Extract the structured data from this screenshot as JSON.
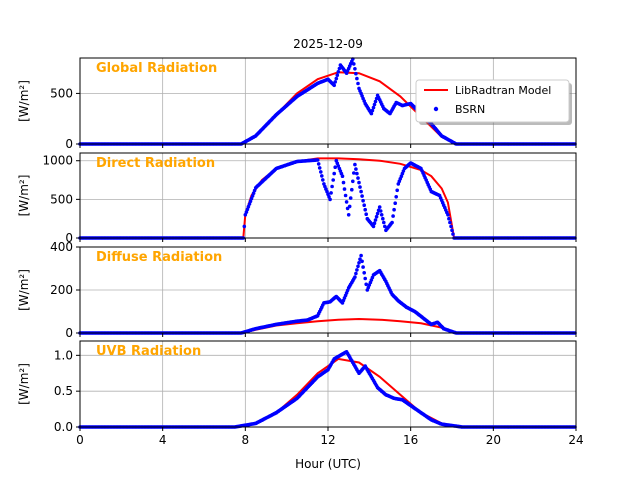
{
  "figure": {
    "title": "2025-12-09",
    "xlabel": "Hour (UTC)",
    "xticks": [
      0,
      4,
      8,
      12,
      16,
      20,
      24
    ],
    "xlim": [
      0,
      24
    ]
  },
  "legend": {
    "model_label": "LibRadtran Model",
    "bsrn_label": "BSRN",
    "placement": "right, inside top panel"
  },
  "colors": {
    "model": "#ff0000",
    "bsrn": "#0000ff",
    "panel_title": "#ffa500",
    "grid": "#b0b0b0"
  },
  "chart_data": [
    {
      "type": "line",
      "title": "Global Radiation",
      "ylabel": "[W/m²]",
      "ylim": [
        0,
        850
      ],
      "yticks": [
        0,
        500
      ],
      "grid": true,
      "series": [
        {
          "name": "LibRadtran Model",
          "x": [
            0,
            7.8,
            8.5,
            9.5,
            10.5,
            11.5,
            12.5,
            13.5,
            14.5,
            15.5,
            16.5,
            17.5,
            18.2,
            24
          ],
          "y": [
            0,
            0,
            80,
            290,
            500,
            640,
            710,
            700,
            620,
            470,
            270,
            70,
            0,
            0
          ]
        },
        {
          "name": "BSRN",
          "x": [
            0,
            2,
            4,
            6,
            7.8,
            8.5,
            9.5,
            10.5,
            11.5,
            12.0,
            12.3,
            12.6,
            12.9,
            13.2,
            13.5,
            13.8,
            14.1,
            14.4,
            14.7,
            15.0,
            15.3,
            15.6,
            16.0,
            16.5,
            17.0,
            17.5,
            18.2,
            20,
            22,
            24
          ],
          "y": [
            0,
            0,
            0,
            0,
            0,
            80,
            290,
            470,
            600,
            640,
            580,
            780,
            700,
            840,
            550,
            400,
            300,
            480,
            350,
            300,
            410,
            380,
            400,
            300,
            200,
            80,
            0,
            0,
            0,
            0
          ]
        }
      ]
    },
    {
      "type": "line",
      "title": "Direct Radiation",
      "ylabel": "[W/m²]",
      "ylim": [
        0,
        1100
      ],
      "yticks": [
        0,
        500,
        1000
      ],
      "grid": true,
      "series": [
        {
          "name": "LibRadtran Model",
          "x": [
            7.9,
            8.0,
            8.3,
            8.8,
            9.5,
            10.5,
            11.5,
            12.5,
            13.5,
            14.5,
            15.5,
            16.5,
            17.0,
            17.5,
            17.8,
            18.1
          ],
          "y": [
            0,
            300,
            550,
            750,
            900,
            990,
            1030,
            1030,
            1020,
            1000,
            960,
            880,
            800,
            640,
            460,
            0
          ]
        },
        {
          "name": "BSRN",
          "x": [
            0,
            4,
            7.9,
            8.0,
            8.5,
            9.5,
            10.5,
            11.5,
            11.8,
            12.1,
            12.4,
            12.7,
            13.0,
            13.3,
            13.6,
            13.9,
            14.2,
            14.5,
            14.8,
            15.1,
            15.4,
            15.7,
            16.0,
            16.5,
            17.0,
            17.4,
            17.8,
            18.1,
            20,
            24
          ],
          "y": [
            0,
            0,
            0,
            300,
            650,
            900,
            990,
            1010,
            700,
            500,
            1000,
            800,
            300,
            950,
            600,
            250,
            150,
            400,
            100,
            200,
            700,
            900,
            970,
            900,
            600,
            550,
            300,
            0,
            0,
            0
          ]
        }
      ]
    },
    {
      "type": "line",
      "title": "Diffuse Radiation",
      "ylabel": "[W/m²]",
      "ylim": [
        0,
        400
      ],
      "yticks": [
        0,
        200,
        400
      ],
      "grid": true,
      "series": [
        {
          "name": "LibRadtran Model",
          "x": [
            0,
            7.8,
            8.5,
            9.5,
            10.5,
            11.5,
            12.5,
            13.5,
            14.5,
            15.5,
            16.5,
            17.5,
            18.2,
            24
          ],
          "y": [
            0,
            0,
            15,
            35,
            45,
            55,
            62,
            65,
            62,
            55,
            45,
            25,
            0,
            0
          ]
        },
        {
          "name": "BSRN",
          "x": [
            0,
            4,
            7.8,
            8.5,
            9.5,
            10.5,
            11.0,
            11.5,
            11.8,
            12.1,
            12.4,
            12.7,
            13.0,
            13.3,
            13.6,
            13.9,
            14.2,
            14.5,
            14.8,
            15.1,
            15.4,
            15.8,
            16.2,
            16.6,
            17.0,
            17.3,
            17.6,
            18.2,
            20,
            24
          ],
          "y": [
            0,
            0,
            0,
            20,
            40,
            55,
            60,
            80,
            140,
            145,
            170,
            140,
            210,
            260,
            360,
            200,
            270,
            290,
            240,
            180,
            150,
            120,
            100,
            70,
            40,
            50,
            20,
            0,
            0,
            0
          ]
        }
      ]
    },
    {
      "type": "line",
      "title": "UVB Radiation",
      "ylabel": "[W/m²]",
      "ylim": [
        0,
        1.2
      ],
      "yticks": [
        0.0,
        0.5,
        1.0
      ],
      "grid": true,
      "series": [
        {
          "name": "LibRadtran Model",
          "x": [
            0,
            7.5,
            8.5,
            9.5,
            10.5,
            11.5,
            12.5,
            13.5,
            14.5,
            15.5,
            16.5,
            17.5,
            18.5,
            24
          ],
          "y": [
            0,
            0,
            0.05,
            0.2,
            0.45,
            0.75,
            0.95,
            0.9,
            0.7,
            0.45,
            0.2,
            0.05,
            0,
            0
          ]
        },
        {
          "name": "BSRN",
          "x": [
            0,
            4,
            7.5,
            8.5,
            9.5,
            10.5,
            11.5,
            12.0,
            12.3,
            12.6,
            12.9,
            13.2,
            13.5,
            13.8,
            14.1,
            14.4,
            14.8,
            15.2,
            15.6,
            16.0,
            16.5,
            17.0,
            17.5,
            18.5,
            20,
            24
          ],
          "y": [
            0,
            0,
            0,
            0.05,
            0.2,
            0.4,
            0.7,
            0.8,
            0.95,
            1.0,
            1.05,
            0.9,
            0.75,
            0.85,
            0.7,
            0.55,
            0.45,
            0.4,
            0.38,
            0.3,
            0.2,
            0.1,
            0.04,
            0,
            0,
            0
          ]
        }
      ]
    }
  ]
}
